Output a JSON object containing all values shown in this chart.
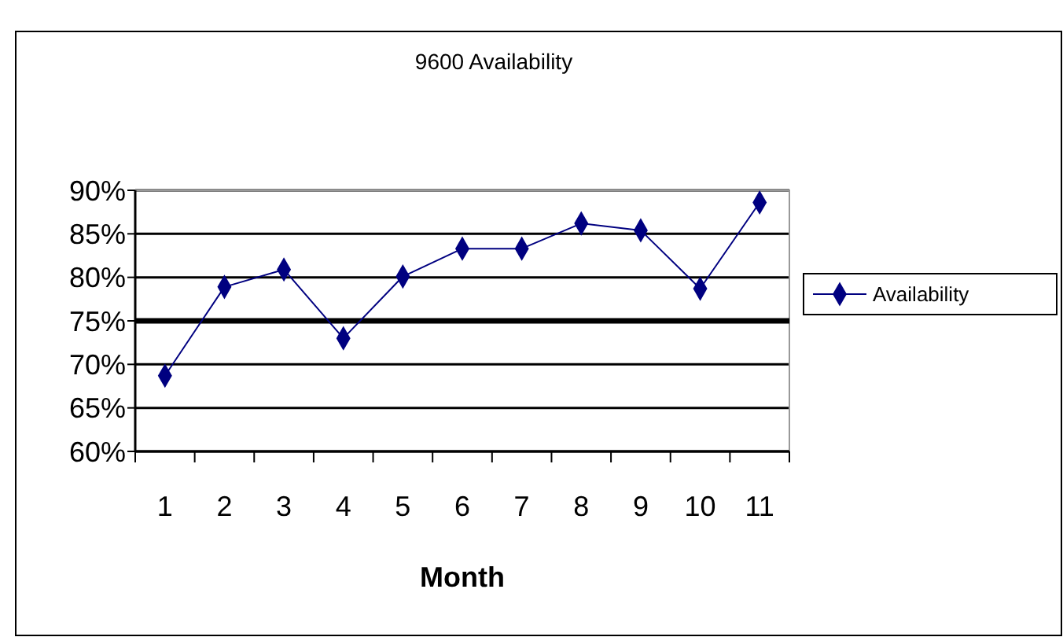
{
  "chart_data": {
    "type": "line",
    "title": "9600 Availability",
    "xlabel": "Month",
    "categories": [
      "1",
      "2",
      "3",
      "4",
      "5",
      "6",
      "7",
      "8",
      "9",
      "10",
      "11"
    ],
    "series": [
      {
        "name": "Availability",
        "color": "#000080",
        "values": [
          68.7,
          78.9,
          80.9,
          73,
          80.1,
          83.3,
          83.3,
          86.2,
          85.4,
          78.7,
          88.6
        ]
      }
    ],
    "ylim": [
      60,
      90
    ],
    "yticks": [
      {
        "value": 60,
        "label": "60%"
      },
      {
        "value": 65,
        "label": "65%"
      },
      {
        "value": 70,
        "label": "70%"
      },
      {
        "value": 75,
        "label": "75%"
      },
      {
        "value": 80,
        "label": "80%"
      },
      {
        "value": 85,
        "label": "85%"
      },
      {
        "value": 90,
        "label": "90%"
      }
    ],
    "grid": "y",
    "legend": "right",
    "marker": "diamond",
    "ref_lines": [
      {
        "axis": "y",
        "value": 75,
        "label": null,
        "color": "#000000"
      }
    ]
  }
}
